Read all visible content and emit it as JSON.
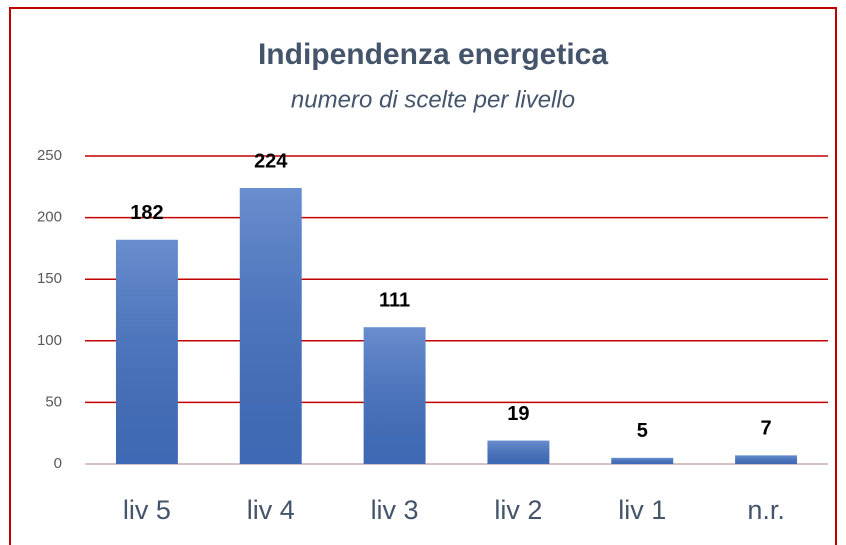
{
  "chart_data": {
    "type": "bar",
    "title": "Indipendenza energetica",
    "subtitle": "numero di scelte per livello",
    "categories": [
      "liv 5",
      "liv 4",
      "liv 3",
      "liv 2",
      "liv 1",
      "n.r."
    ],
    "values": [
      182,
      224,
      111,
      19,
      5,
      7
    ],
    "color": "#4472c4",
    "ylim": [
      0,
      250
    ],
    "yticks": [
      0,
      50,
      100,
      150,
      200,
      250
    ],
    "grid": true,
    "grid_color": "#c00000"
  }
}
